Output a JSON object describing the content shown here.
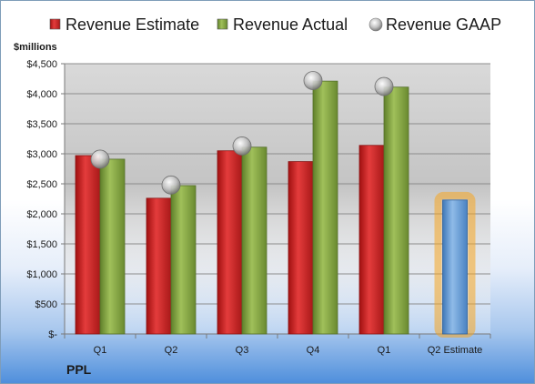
{
  "chart_data": {
    "type": "bar",
    "company": "PPL",
    "unit_label": "$millions",
    "categories": [
      "Q1",
      "Q2",
      "Q3",
      "Q4",
      "Q1",
      "Q2 Estimate"
    ],
    "series": [
      {
        "name": "Revenue Estimate",
        "type": "bar",
        "color": "#d42a2a",
        "values": [
          2970,
          2260,
          3050,
          2870,
          3140,
          null
        ]
      },
      {
        "name": "Revenue Actual",
        "type": "bar",
        "color": "#86a844",
        "values": [
          2910,
          2470,
          3110,
          4210,
          4110,
          null
        ]
      },
      {
        "name": "Revenue GAAP",
        "type": "point",
        "color": "#b0b0b0",
        "values": [
          2910,
          2480,
          3130,
          4220,
          4120,
          null
        ]
      },
      {
        "name": "",
        "type": "bar-highlight",
        "color": "#5b9bd5",
        "values": [
          null,
          null,
          null,
          null,
          null,
          2230
        ]
      }
    ],
    "yticks": [
      "$-",
      "$500",
      "$1,000",
      "$1,500",
      "$2,000",
      "$2,500",
      "$3,000",
      "$3,500",
      "$4,000",
      "$4,500"
    ],
    "ylim": [
      0,
      4500
    ],
    "grid": true,
    "legend": "top"
  }
}
